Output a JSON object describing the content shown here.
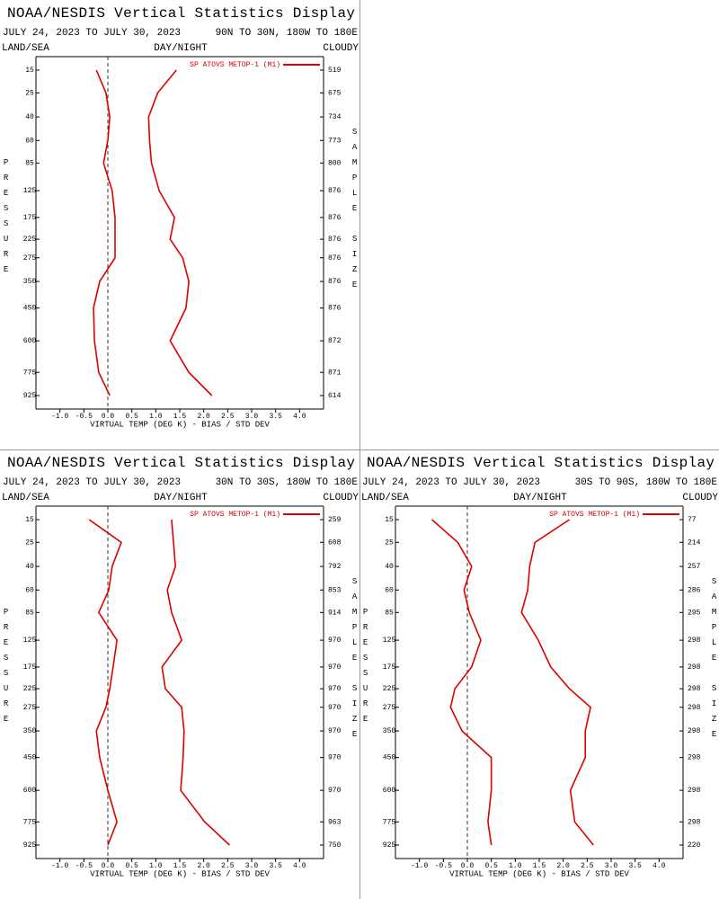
{
  "chart_data": [
    {
      "type": "line",
      "title": "NOAA/NESDIS Vertical Statistics Display",
      "date_range": "JULY 24, 2023 TO JULY 30, 2023",
      "region": "90N TO 30N, 180W TO 180E",
      "land_sea": "LAND/SEA",
      "day_night": "DAY/NIGHT",
      "cloud": "CLOUDY",
      "y_label": "PRESSURE",
      "y2_label": "SAMPLE SIZE",
      "x_label": "VIRTUAL TEMP (DEG K) - BIAS / STD DEV",
      "categories": [
        15,
        25,
        40,
        60,
        85,
        125,
        175,
        225,
        275,
        350,
        450,
        600,
        775,
        925
      ],
      "sample_size": [
        519,
        675,
        734,
        773,
        800,
        876,
        876,
        876,
        876,
        876,
        876,
        872,
        871,
        614
      ],
      "series": [
        {
          "name": "SP ATOVS METOP-1 (M1)",
          "color": "#dd0000",
          "values": [
            -0.24,
            -0.04,
            0.04,
            0.0,
            -0.09,
            0.09,
            0.15,
            0.15,
            0.15,
            -0.17,
            -0.3,
            -0.28,
            -0.19,
            0.04
          ],
          "std_dev": [
            1.43,
            1.04,
            0.85,
            0.87,
            0.91,
            1.07,
            1.39,
            1.3,
            1.56,
            1.69,
            1.63,
            1.3,
            1.69,
            2.17
          ]
        }
      ],
      "xlim": [
        -1.5,
        4.5
      ],
      "xticks": [
        {
          "value": -1,
          "label": "-1.0"
        },
        {
          "value": -0.5,
          "label": "-0.5"
        },
        {
          "value": 0,
          "label": "0.0"
        },
        {
          "value": 0.5,
          "label": "0.5"
        },
        {
          "value": 1,
          "label": "1.0"
        },
        {
          "value": 1.5,
          "label": "1.5"
        },
        {
          "value": 2,
          "label": "2.0"
        },
        {
          "value": 2.5,
          "label": "2.5"
        },
        {
          "value": 3,
          "label": "3.0"
        },
        {
          "value": 3.5,
          "label": "3.5"
        },
        {
          "value": 4,
          "label": "4.0"
        }
      ]
    },
    {
      "type": "line",
      "title": "NOAA/NESDIS Vertical Statistics Display",
      "date_range": "JULY 24, 2023 TO JULY 30, 2023",
      "region": "30N TO 30S, 180W TO 180E",
      "land_sea": "LAND/SEA",
      "day_night": "DAY/NIGHT",
      "cloud": "CLOUDY",
      "y_label": "PRESSURE",
      "y2_label": "SAMPLE SIZE",
      "x_label": "VIRTUAL TEMP (DEG K) - BIAS / STD DEV",
      "categories": [
        15,
        25,
        40,
        60,
        85,
        125,
        175,
        225,
        275,
        350,
        450,
        600,
        775,
        925
      ],
      "sample_size": [
        259,
        608,
        792,
        853,
        914,
        970,
        970,
        970,
        970,
        970,
        970,
        970,
        963,
        750
      ],
      "series": [
        {
          "name": "SP ATOVS METOP-1 (M1)",
          "color": "#dd0000",
          "values": [
            -0.39,
            0.28,
            0.09,
            0.02,
            -0.19,
            0.19,
            0.11,
            0.04,
            -0.04,
            -0.24,
            -0.17,
            0.0,
            0.19,
            0.0
          ],
          "std_dev": [
            1.33,
            1.37,
            1.41,
            1.24,
            1.33,
            1.54,
            1.13,
            1.2,
            1.54,
            1.59,
            1.57,
            1.52,
            2.02,
            2.54
          ]
        }
      ],
      "xlim": [
        -1.5,
        4.5
      ],
      "xticks": [
        {
          "value": -1,
          "label": "-1.0"
        },
        {
          "value": -0.5,
          "label": "-0.5"
        },
        {
          "value": 0,
          "label": "0.0"
        },
        {
          "value": 0.5,
          "label": "0.5"
        },
        {
          "value": 1,
          "label": "1.0"
        },
        {
          "value": 1.5,
          "label": "1.5"
        },
        {
          "value": 2,
          "label": "2.0"
        },
        {
          "value": 2.5,
          "label": "2.5"
        },
        {
          "value": 3,
          "label": "3.0"
        },
        {
          "value": 3.5,
          "label": "3.5"
        },
        {
          "value": 4,
          "label": "4.0"
        }
      ]
    },
    {
      "type": "line",
      "title": "NOAA/NESDIS Vertical Statistics Display",
      "date_range": "JULY 24, 2023 TO JULY 30, 2023",
      "region": "30S TO 90S, 180W TO 180E",
      "land_sea": "LAND/SEA",
      "day_night": "DAY/NIGHT",
      "cloud": "CLOUDY",
      "y_label": "PRESSURE",
      "y2_label": "SAMPLE SIZE",
      "x_label": "VIRTUAL TEMP (DEG K) - BIAS / STD DEV",
      "categories": [
        15,
        25,
        40,
        60,
        85,
        125,
        175,
        225,
        275,
        350,
        450,
        600,
        775,
        925
      ],
      "sample_size": [
        77,
        214,
        257,
        286,
        295,
        298,
        298,
        298,
        298,
        298,
        298,
        298,
        298,
        220
      ],
      "series": [
        {
          "name": "SP ATOVS METOP-1 (M1)",
          "color": "#dd0000",
          "values": [
            -0.74,
            -0.2,
            0.09,
            -0.07,
            0.04,
            0.28,
            0.09,
            -0.26,
            -0.35,
            -0.11,
            0.5,
            0.5,
            0.43,
            0.5
          ],
          "std_dev": [
            2.13,
            1.41,
            1.3,
            1.26,
            1.13,
            1.48,
            1.74,
            2.13,
            2.57,
            2.46,
            2.46,
            2.15,
            2.24,
            2.63
          ]
        }
      ],
      "xlim": [
        -1.5,
        4.5
      ],
      "xticks": [
        {
          "value": -1,
          "label": "-1.0"
        },
        {
          "value": -0.5,
          "label": "-0.5"
        },
        {
          "value": 0,
          "label": "0.0"
        },
        {
          "value": 0.5,
          "label": "0.5"
        },
        {
          "value": 1,
          "label": "1.0"
        },
        {
          "value": 1.5,
          "label": "1.5"
        },
        {
          "value": 2,
          "label": "2.0"
        },
        {
          "value": 2.5,
          "label": "2.5"
        },
        {
          "value": 3,
          "label": "3.0"
        },
        {
          "value": 3.5,
          "label": "3.5"
        },
        {
          "value": 4,
          "label": "4.0"
        }
      ]
    }
  ]
}
